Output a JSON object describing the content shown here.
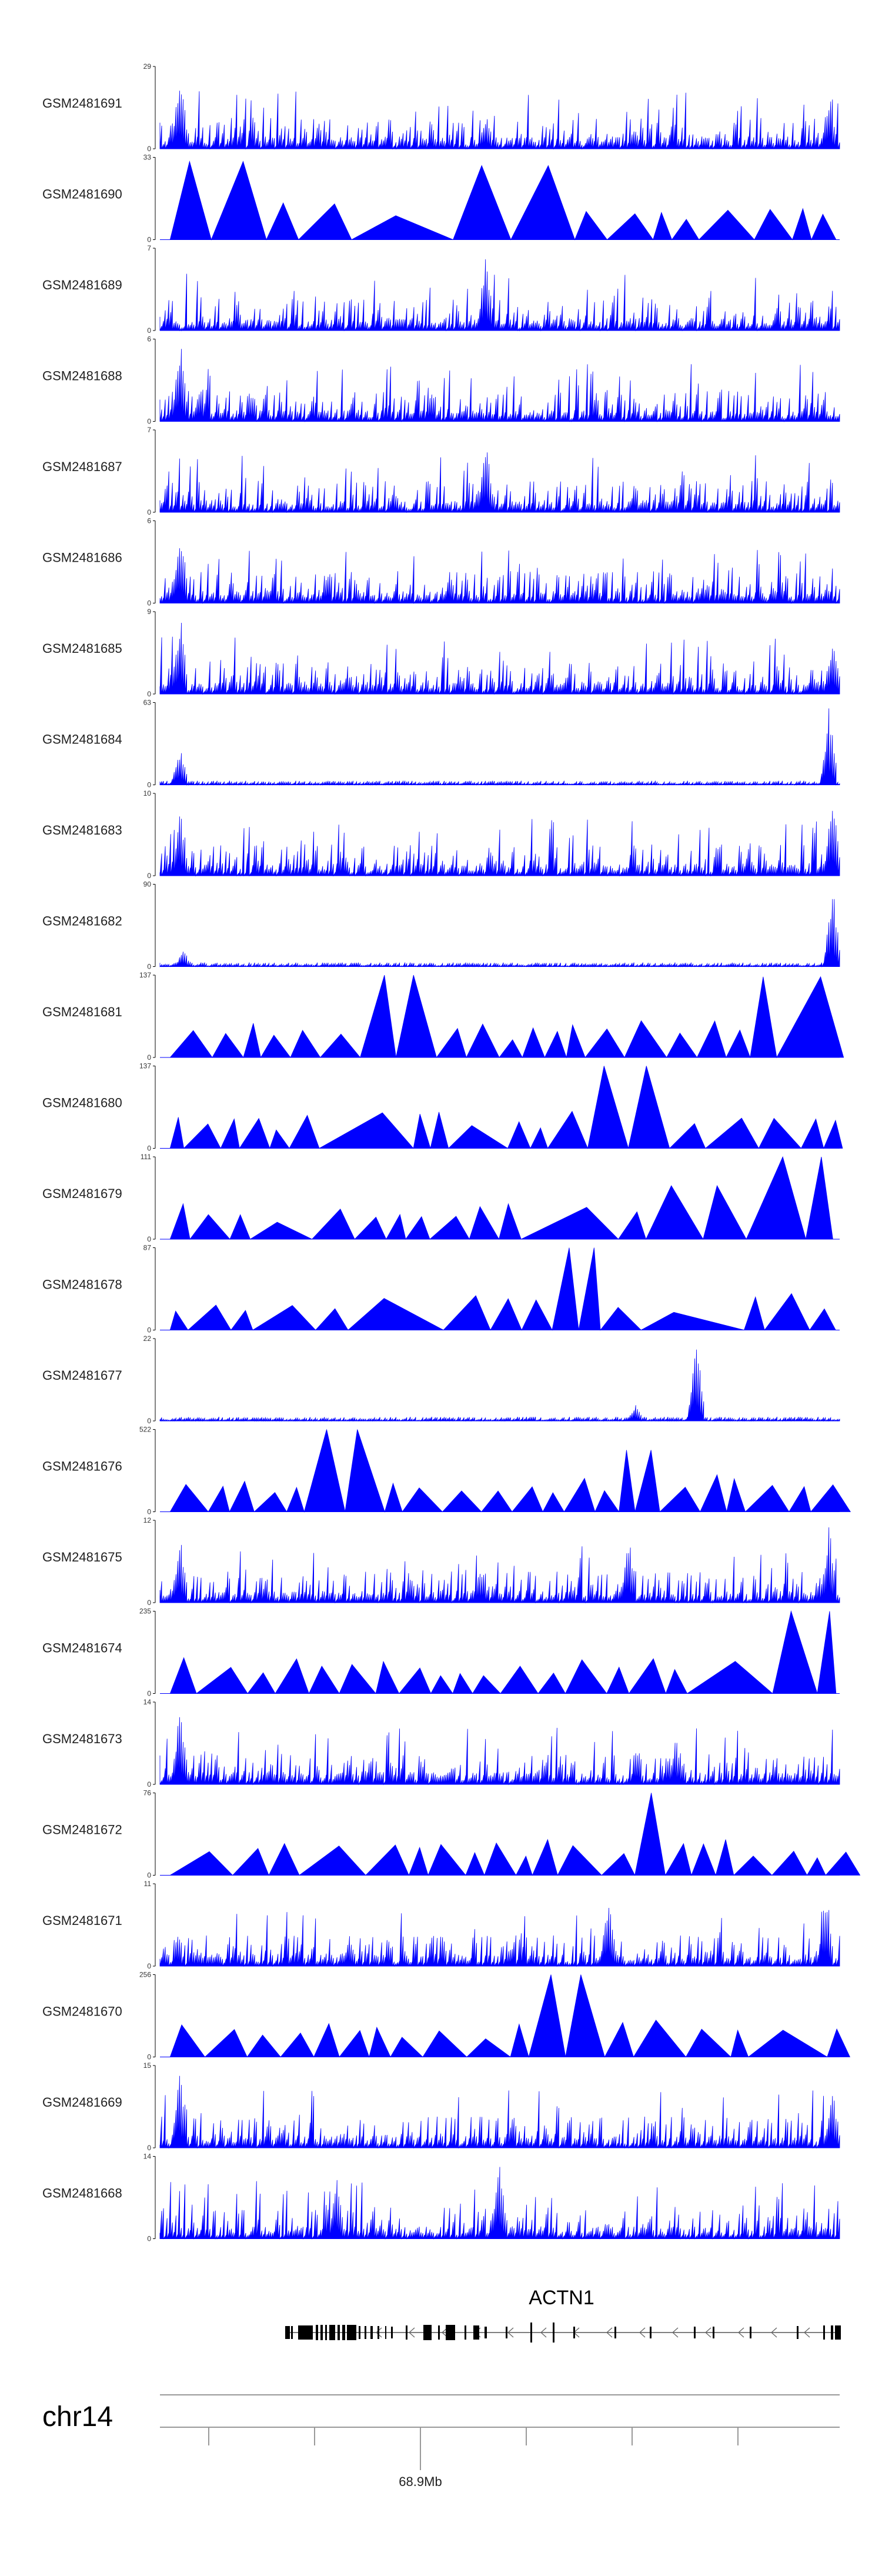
{
  "chart_data": {
    "type": "area",
    "title": "",
    "chromosome": "chr14",
    "axis_label": "68.9Mb",
    "gene": "ACTN1",
    "color": "#0000ff",
    "tracks": [
      {
        "name": "GSM2481691",
        "max": 29,
        "style": "dense",
        "peaks": [
          [
            0.03,
            1.0
          ],
          [
            0.48,
            0.45
          ],
          [
            0.985,
            0.7
          ]
        ]
      },
      {
        "name": "GSM2481690",
        "max": 33,
        "style": "triangles",
        "peaks": [
          [
            0.1,
            0.95
          ],
          [
            0.54,
            0.9
          ]
        ]
      },
      {
        "name": "GSM2481689",
        "max": 7,
        "style": "dense",
        "peaks": [
          [
            0.48,
            1.0
          ]
        ]
      },
      {
        "name": "GSM2481688",
        "max": 6,
        "style": "dense",
        "peaks": [
          [
            0.03,
            1.0
          ],
          [
            0.06,
            0.5
          ]
        ]
      },
      {
        "name": "GSM2481687",
        "max": 7,
        "style": "dense",
        "peaks": [
          [
            0.48,
            0.85
          ]
        ]
      },
      {
        "name": "GSM2481686",
        "max": 6,
        "style": "dense",
        "peaks": [
          [
            0.03,
            1.0
          ]
        ]
      },
      {
        "name": "GSM2481685",
        "max": 9,
        "style": "dense",
        "peaks": [
          [
            0.03,
            1.0
          ],
          [
            0.99,
            0.75
          ]
        ]
      },
      {
        "name": "GSM2481684",
        "max": 63,
        "style": "sparse",
        "peaks": [
          [
            0.03,
            0.45
          ],
          [
            0.985,
            1.0
          ]
        ]
      },
      {
        "name": "GSM2481683",
        "max": 10,
        "style": "dense",
        "peaks": [
          [
            0.03,
            0.8
          ],
          [
            0.99,
            1.0
          ]
        ]
      },
      {
        "name": "GSM2481682",
        "max": 90,
        "style": "sparse",
        "peaks": [
          [
            0.035,
            0.2
          ],
          [
            0.99,
            1.0
          ]
        ]
      },
      {
        "name": "GSM2481681",
        "max": 137,
        "style": "triangles",
        "peaks": [
          [
            0.37,
            1.0
          ],
          [
            0.9,
            0.98
          ]
        ]
      },
      {
        "name": "GSM2481680",
        "max": 137,
        "style": "triangles",
        "peaks": [
          [
            0.675,
            1.0
          ]
        ]
      },
      {
        "name": "GSM2481679",
        "max": 111,
        "style": "triangles",
        "peaks": [
          [
            0.84,
            0.65
          ],
          [
            0.99,
            1.0
          ]
        ]
      },
      {
        "name": "GSM2481678",
        "max": 87,
        "style": "triangles",
        "peaks": [
          [
            0.62,
            1.0
          ]
        ]
      },
      {
        "name": "GSM2481677",
        "max": 22,
        "style": "sparse",
        "peaks": [
          [
            0.79,
            1.0
          ],
          [
            0.7,
            0.2
          ]
        ]
      },
      {
        "name": "GSM2481676",
        "max": 522,
        "style": "triangles",
        "peaks": [
          [
            0.3,
            1.0
          ],
          [
            0.7,
            0.75
          ]
        ]
      },
      {
        "name": "GSM2481675",
        "max": 12,
        "style": "dense",
        "peaks": [
          [
            0.03,
            0.8
          ],
          [
            0.69,
            0.85
          ],
          [
            0.985,
            1.0
          ]
        ]
      },
      {
        "name": "GSM2481674",
        "max": 235,
        "style": "triangles",
        "peaks": [
          [
            0.985,
            1.0
          ]
        ]
      },
      {
        "name": "GSM2481673",
        "max": 14,
        "style": "dense",
        "peaks": [
          [
            0.03,
            1.0
          ],
          [
            0.76,
            0.6
          ]
        ]
      },
      {
        "name": "GSM2481672",
        "max": 76,
        "style": "triangles",
        "peaks": [
          [
            0.73,
            1.0
          ]
        ]
      },
      {
        "name": "GSM2481671",
        "max": 11,
        "style": "dense",
        "peaks": [
          [
            0.66,
            0.9
          ],
          [
            0.98,
            1.0
          ]
        ]
      },
      {
        "name": "GSM2481670",
        "max": 256,
        "style": "triangles",
        "peaks": [
          [
            0.6,
            1.0
          ]
        ]
      },
      {
        "name": "GSM2481669",
        "max": 15,
        "style": "dense",
        "peaks": [
          [
            0.03,
            1.0
          ],
          [
            0.99,
            0.75
          ]
        ]
      },
      {
        "name": "GSM2481668",
        "max": 14,
        "style": "dense",
        "peaks": [
          [
            0.5,
            1.0
          ],
          [
            0.26,
            0.75
          ]
        ]
      }
    ]
  }
}
